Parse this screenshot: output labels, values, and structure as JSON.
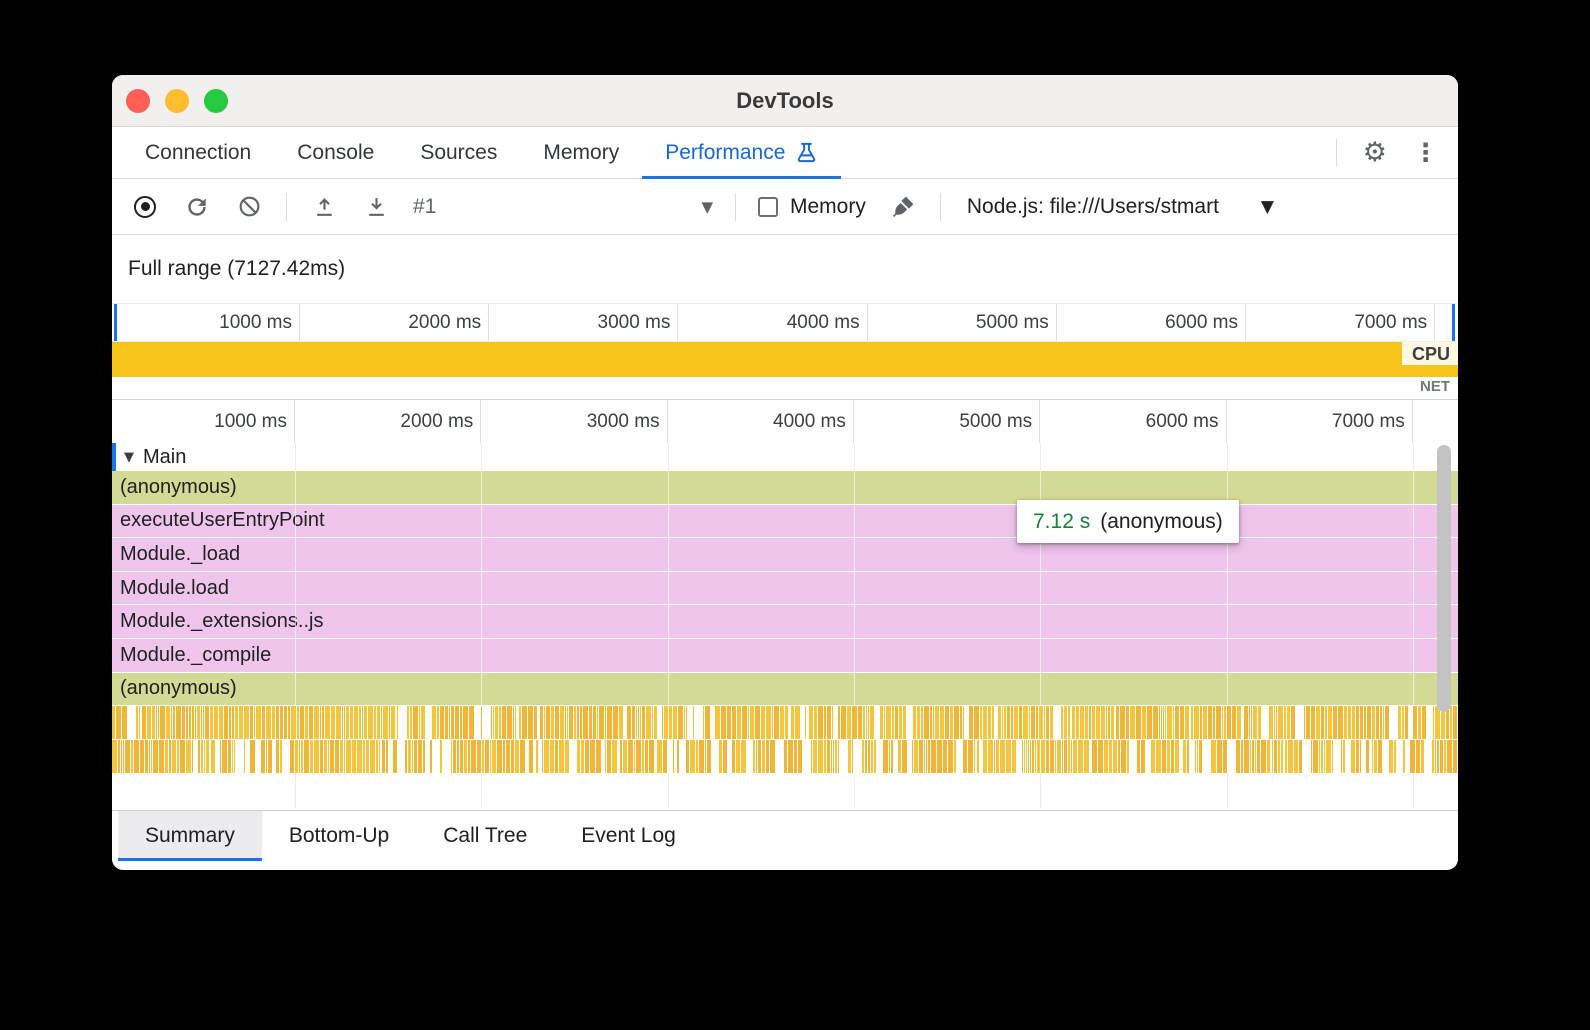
{
  "window": {
    "title": "DevTools"
  },
  "main_tabs": {
    "items": [
      {
        "label": "Connection",
        "active": false
      },
      {
        "label": "Console",
        "active": false
      },
      {
        "label": "Sources",
        "active": false
      },
      {
        "label": "Memory",
        "active": false
      },
      {
        "label": "Performance",
        "active": true
      }
    ]
  },
  "toolbar": {
    "history_selected": "#1",
    "memory_label": "Memory",
    "target_selected": "Node.js: file:///Users/stmart"
  },
  "overview": {
    "full_range_label": "Full range (7127.42ms)",
    "ticks": [
      "1000 ms",
      "2000 ms",
      "3000 ms",
      "4000 ms",
      "5000 ms",
      "6000 ms",
      "7000 ms"
    ],
    "cpu_label": "CPU",
    "net_label": "NET"
  },
  "flame": {
    "ticks": [
      "1000 ms",
      "2000 ms",
      "3000 ms",
      "4000 ms",
      "5000 ms",
      "6000 ms",
      "7000 ms"
    ],
    "track_label": "Main",
    "rows": [
      {
        "label": "(anonymous)",
        "kind": "script"
      },
      {
        "label": "executeUserEntryPoint",
        "kind": "function"
      },
      {
        "label": "Module._load",
        "kind": "function"
      },
      {
        "label": "Module.load",
        "kind": "function"
      },
      {
        "label": "Module._extensions..js",
        "kind": "function"
      },
      {
        "label": "Module._compile",
        "kind": "function"
      },
      {
        "label": "(anonymous)",
        "kind": "script"
      }
    ],
    "tooltip": {
      "duration": "7.12 s",
      "label": "(anonymous)"
    }
  },
  "bottom_tabs": {
    "items": [
      {
        "label": "Summary",
        "active": true
      },
      {
        "label": "Bottom-Up",
        "active": false
      },
      {
        "label": "Call Tree",
        "active": false
      },
      {
        "label": "Event Log",
        "active": false
      }
    ]
  },
  "colors": {
    "accent": "#1a73e8",
    "cpu_fill": "#f8c51c",
    "script_row": "#d3da96",
    "function_row": "#f0c5ec",
    "stripe_a": "#f6c53e",
    "stripe_b": "#efb637",
    "tooltip_duration": "#188038"
  }
}
